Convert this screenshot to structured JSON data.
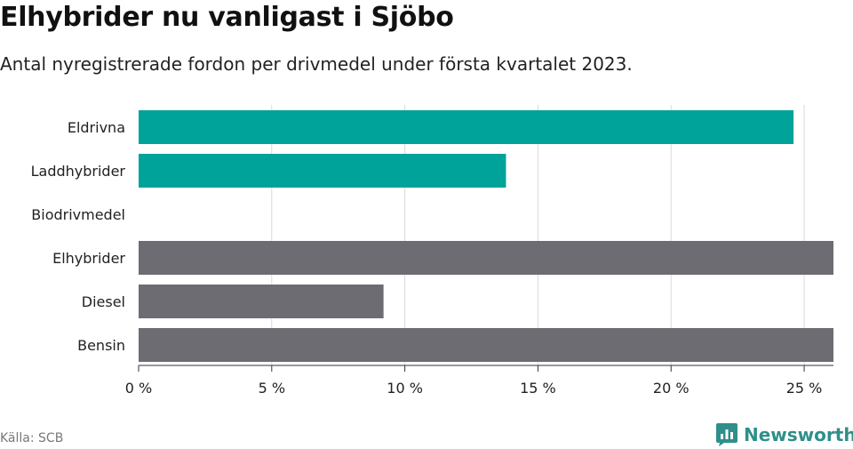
{
  "header": {
    "title": "Elhybrider nu vanligast i Sjöbo",
    "subtitle": "Antal nyregistrerade fordon per drivmedel under första kvartalet 2023."
  },
  "footer": {
    "source": "Källa: SCB",
    "brand": "Newsworthy",
    "brand_icon": "newsworthy-logo-icon"
  },
  "colors": {
    "highlight": "#00a39a",
    "default": "#6d6c72",
    "grid": "#d9d9d9",
    "axis": "#333333",
    "brand": "#2f8f8a"
  },
  "chart_data": {
    "type": "bar",
    "orientation": "horizontal",
    "categories": [
      "Eldrivna",
      "Laddhybrider",
      "Biodrivmedel",
      "Elhybrider",
      "Diesel",
      "Bensin"
    ],
    "values": [
      24.6,
      13.8,
      0,
      26.5,
      9.2,
      26.3
    ],
    "highlighted": [
      true,
      true,
      false,
      false,
      false,
      false
    ],
    "x_ticks": [
      0,
      5,
      10,
      15,
      20,
      25
    ],
    "x_tick_labels": [
      "0 %",
      "5 %",
      "10 %",
      "15 %",
      "20 %",
      "25 %"
    ],
    "xlim": [
      0,
      26.1
    ],
    "grid": true,
    "title": "Elhybrider nu vanligast i Sjöbo",
    "subtitle": "Antal nyregistrerade fordon per drivmedel under första kvartalet 2023."
  }
}
